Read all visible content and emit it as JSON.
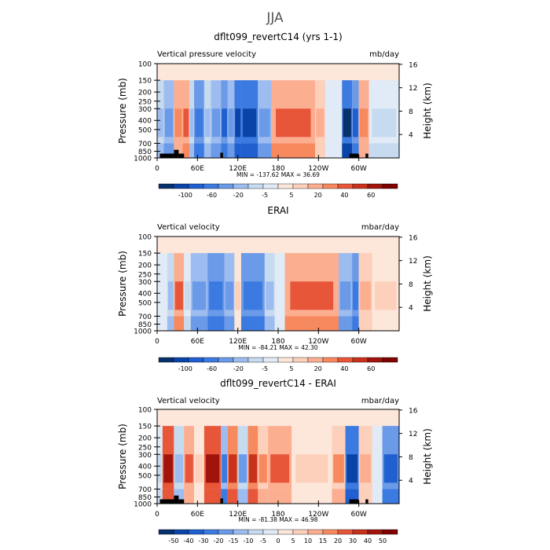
{
  "figure": {
    "title": "JJA",
    "colors": {
      "dark_blue": "#08306b",
      "blue": "#2c5fd6",
      "light_blue": "#c6dbef",
      "neutral": "#fde6da",
      "light_red": "#fcae91",
      "red": "#e8563a",
      "dark_red": "#7f0000",
      "topography": "#000000"
    }
  },
  "chart_data": [
    {
      "type": "heatmap",
      "title": "dflt099_revertC14 (yrs 1-1)",
      "left_label": "Vertical pressure velocity",
      "right_label": "mb/day",
      "ylabel": "Pressure (mb)",
      "ylabel_right": "Height (km)",
      "stats": "MIN = -137.62   MAX =  36.69",
      "x_ticks": [
        "0",
        "60E",
        "120E",
        "180",
        "120W",
        "60W"
      ],
      "x_values": [
        0,
        60,
        120,
        180,
        240,
        300
      ],
      "xlim": [
        0,
        360
      ],
      "y_ticks": [
        "100",
        "150",
        "200",
        "250",
        "300",
        "400",
        "500",
        "700",
        "850",
        "1000"
      ],
      "y_values": [
        100,
        150,
        200,
        250,
        300,
        400,
        500,
        700,
        850,
        1000
      ],
      "ylim": [
        1000,
        100
      ],
      "y_scale": "log",
      "height_ticks": [
        "4",
        "8",
        "12",
        "16"
      ],
      "height_values": [
        4,
        8,
        12,
        16
      ],
      "colorbar_labels": [
        "-100",
        "-60",
        "-20",
        "-5",
        "5",
        "20",
        "40",
        "60"
      ],
      "colorbar_levels": [
        -120,
        -100,
        -80,
        -60,
        -40,
        -20,
        -10,
        -5,
        0,
        5,
        10,
        20,
        30,
        40,
        50,
        60,
        70
      ],
      "bands": [
        {
          "lon": [
            0,
            10
          ],
          "value": -20
        },
        {
          "lon": [
            10,
            25
          ],
          "value": -40
        },
        {
          "lon": [
            25,
            38
          ],
          "value": 20
        },
        {
          "lon": [
            38,
            48
          ],
          "value": 30
        },
        {
          "lon": [
            48,
            55
          ],
          "value": -20
        },
        {
          "lon": [
            55,
            70
          ],
          "value": -60
        },
        {
          "lon": [
            70,
            80
          ],
          "value": -20
        },
        {
          "lon": [
            80,
            95
          ],
          "value": -40
        },
        {
          "lon": [
            95,
            105
          ],
          "value": -80
        },
        {
          "lon": [
            105,
            115
          ],
          "value": -40
        },
        {
          "lon": [
            115,
            125
          ],
          "value": -100
        },
        {
          "lon": [
            125,
            150
          ],
          "value": -100
        },
        {
          "lon": [
            150,
            170
          ],
          "value": -40
        },
        {
          "lon": [
            170,
            235
          ],
          "value": 30
        },
        {
          "lon": [
            235,
            250
          ],
          "value": 10
        },
        {
          "lon": [
            250,
            275
          ],
          "value": -5
        },
        {
          "lon": [
            275,
            290
          ],
          "value": -120
        },
        {
          "lon": [
            290,
            300
          ],
          "value": -80
        },
        {
          "lon": [
            300,
            315
          ],
          "value": 20
        },
        {
          "lon": [
            315,
            360
          ],
          "value": -10
        }
      ],
      "topography": [
        {
          "lon": [
            4,
            25
          ],
          "p": 900
        },
        {
          "lon": [
            25,
            32
          ],
          "p": 820
        },
        {
          "lon": [
            32,
            40
          ],
          "p": 900
        },
        {
          "lon": [
            94,
            98
          ],
          "p": 880
        },
        {
          "lon": [
            286,
            300
          ],
          "p": 900
        },
        {
          "lon": [
            310,
            314
          ],
          "p": 900
        }
      ]
    },
    {
      "type": "heatmap",
      "title": "ERAI",
      "left_label": "Vertical velocity",
      "right_label": "mbar/day",
      "ylabel": "Pressure (mb)",
      "ylabel_right": "Height (km)",
      "stats": "MIN = -84.21   MAX =  42.30",
      "x_ticks": [
        "0",
        "60E",
        "120E",
        "180",
        "120W",
        "60W"
      ],
      "x_values": [
        0,
        60,
        120,
        180,
        240,
        300
      ],
      "xlim": [
        0,
        360
      ],
      "y_ticks": [
        "100",
        "150",
        "200",
        "250",
        "300",
        "400",
        "500",
        "700",
        "850",
        "1000"
      ],
      "y_values": [
        100,
        150,
        200,
        250,
        300,
        400,
        500,
        700,
        850,
        1000
      ],
      "ylim": [
        1000,
        100
      ],
      "y_scale": "log",
      "height_ticks": [
        "4",
        "8",
        "12",
        "16"
      ],
      "height_values": [
        4,
        8,
        12,
        16
      ],
      "colorbar_labels": [
        "-100",
        "-60",
        "-20",
        "-5",
        "5",
        "20",
        "40",
        "60"
      ],
      "colorbar_levels": [
        -120,
        -100,
        -80,
        -60,
        -40,
        -20,
        -10,
        -5,
        0,
        5,
        10,
        20,
        30,
        40,
        50,
        60,
        70
      ],
      "bands": [
        {
          "lon": [
            0,
            15
          ],
          "value": -5
        },
        {
          "lon": [
            15,
            25
          ],
          "value": -20
        },
        {
          "lon": [
            25,
            40
          ],
          "value": 30
        },
        {
          "lon": [
            40,
            50
          ],
          "value": -10
        },
        {
          "lon": [
            50,
            75
          ],
          "value": -40
        },
        {
          "lon": [
            75,
            100
          ],
          "value": -60
        },
        {
          "lon": [
            100,
            115
          ],
          "value": -40
        },
        {
          "lon": [
            115,
            125
          ],
          "value": 5
        },
        {
          "lon": [
            125,
            160
          ],
          "value": -60
        },
        {
          "lon": [
            160,
            175
          ],
          "value": -20
        },
        {
          "lon": [
            175,
            190
          ],
          "value": -5
        },
        {
          "lon": [
            190,
            270
          ],
          "value": 30
        },
        {
          "lon": [
            270,
            290
          ],
          "value": -40
        },
        {
          "lon": [
            290,
            300
          ],
          "value": -60
        },
        {
          "lon": [
            300,
            320
          ],
          "value": 10
        },
        {
          "lon": [
            320,
            360
          ],
          "value": 5
        }
      ],
      "topography": []
    },
    {
      "type": "heatmap",
      "title": "dflt099_revertC14 - ERAI",
      "left_label": "Vertical velocity",
      "right_label": "mbar/day",
      "ylabel": "Pressure (mb)",
      "ylabel_right": "Height (km)",
      "stats": "MIN = -81.38   MAX =  46.98",
      "x_ticks": [
        "0",
        "60E",
        "120E",
        "180",
        "120W",
        "60W"
      ],
      "x_values": [
        0,
        60,
        120,
        180,
        240,
        300
      ],
      "xlim": [
        0,
        360
      ],
      "y_ticks": [
        "100",
        "150",
        "200",
        "250",
        "300",
        "400",
        "500",
        "700",
        "850",
        "1000"
      ],
      "y_values": [
        100,
        150,
        200,
        250,
        300,
        400,
        500,
        700,
        850,
        1000
      ],
      "ylim": [
        1000,
        100
      ],
      "y_scale": "log",
      "height_ticks": [
        "4",
        "8",
        "12",
        "16"
      ],
      "height_values": [
        4,
        8,
        12,
        16
      ],
      "colorbar_labels": [
        "-50",
        "-40",
        "-30",
        "-20",
        "-15",
        "-10",
        "-5",
        "0",
        "5",
        "10",
        "15",
        "20",
        "30",
        "40",
        "50"
      ],
      "colorbar_levels": [
        -60,
        -50,
        -40,
        -30,
        -20,
        -15,
        -10,
        -5,
        0,
        5,
        10,
        15,
        20,
        30,
        40,
        50,
        60
      ],
      "bands": [
        {
          "lon": [
            0,
            8
          ],
          "value": -10
        },
        {
          "lon": [
            8,
            25
          ],
          "value": 40
        },
        {
          "lon": [
            25,
            40
          ],
          "value": -15
        },
        {
          "lon": [
            40,
            55
          ],
          "value": 20
        },
        {
          "lon": [
            55,
            70
          ],
          "value": 5
        },
        {
          "lon": [
            70,
            95
          ],
          "value": 40
        },
        {
          "lon": [
            95,
            105
          ],
          "value": -30
        },
        {
          "lon": [
            105,
            120
          ],
          "value": 30
        },
        {
          "lon": [
            120,
            135
          ],
          "value": -20
        },
        {
          "lon": [
            135,
            150
          ],
          "value": 30
        },
        {
          "lon": [
            150,
            165
          ],
          "value": 15
        },
        {
          "lon": [
            165,
            200
          ],
          "value": 20
        },
        {
          "lon": [
            200,
            260
          ],
          "value": 5
        },
        {
          "lon": [
            260,
            280
          ],
          "value": 15
        },
        {
          "lon": [
            280,
            300
          ],
          "value": -50
        },
        {
          "lon": [
            300,
            320
          ],
          "value": 10
        },
        {
          "lon": [
            320,
            335
          ],
          "value": -5
        },
        {
          "lon": [
            335,
            360
          ],
          "value": -40
        }
      ],
      "topography": [
        {
          "lon": [
            4,
            25
          ],
          "p": 900
        },
        {
          "lon": [
            25,
            32
          ],
          "p": 820
        },
        {
          "lon": [
            32,
            40
          ],
          "p": 900
        },
        {
          "lon": [
            94,
            98
          ],
          "p": 880
        },
        {
          "lon": [
            286,
            300
          ],
          "p": 900
        },
        {
          "lon": [
            310,
            314
          ],
          "p": 900
        }
      ]
    }
  ]
}
